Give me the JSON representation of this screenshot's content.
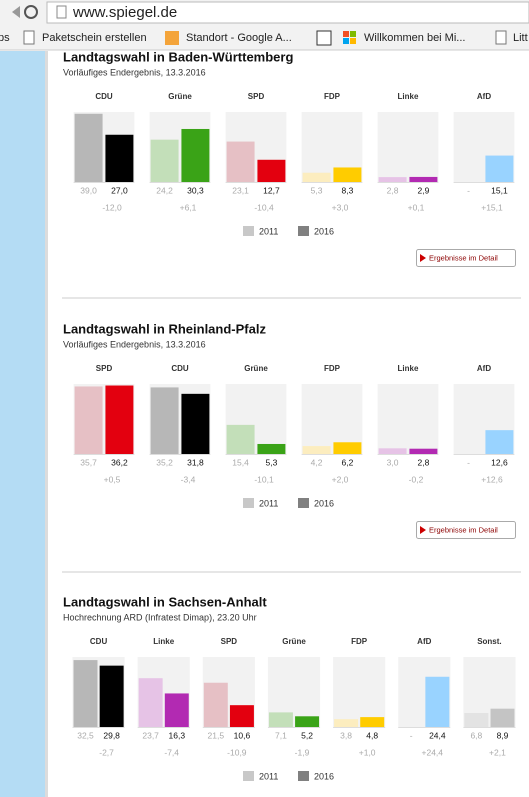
{
  "browser": {
    "url": "www.spiegel.de",
    "bookmarks": [
      "ps",
      "Paketschein erstellen",
      "Standort - Google A...",
      "Willkommen bei Mi...",
      "Litt"
    ]
  },
  "chart_data": [
    {
      "type": "bar",
      "title": "Landtagswahl in Baden-Württemberg",
      "subtitle": "Vorläufiges Endergebnis, 13.3.2016",
      "categories": [
        "CDU",
        "Grüne",
        "SPD",
        "FDP",
        "Linke",
        "AfD"
      ],
      "ylim": [
        0,
        40
      ],
      "series": [
        {
          "name": "2011",
          "color": "#c8c8c8",
          "values": [
            39.0,
            24.2,
            23.1,
            5.3,
            2.8,
            null
          ],
          "value_labels": [
            "39,0",
            "24,2",
            "23,1",
            "5,3",
            "2,8",
            "-"
          ],
          "colors": [
            "#b7b7b7",
            "#c3dfb9",
            "#e6c0c5",
            "#fcedbf",
            "#e6c3e6",
            null
          ]
        },
        {
          "name": "2016",
          "color": "#808080",
          "values": [
            27.0,
            30.3,
            12.7,
            8.3,
            2.9,
            15.1
          ],
          "value_labels": [
            "27,0",
            "30,3",
            "12,7",
            "8,3",
            "2,9",
            "15,1"
          ],
          "colors": [
            "#000000",
            "#3aa317",
            "#e3000f",
            "#ffcc00",
            "#b22ab2",
            "#99d3ff"
          ]
        }
      ],
      "changes": {
        "values": [
          -12.0,
          6.1,
          -10.4,
          3.0,
          0.1,
          15.1
        ],
        "value_labels": [
          "-12,0",
          "+6,1",
          "-10,4",
          "+3,0",
          "+0,1",
          "+15,1"
        ]
      },
      "button": "Ergebnisse im Detail"
    },
    {
      "type": "bar",
      "title": "Landtagswahl in Rheinland-Pfalz",
      "subtitle": "Vorläufiges Endergebnis, 13.3.2016",
      "categories": [
        "SPD",
        "CDU",
        "Grüne",
        "FDP",
        "Linke",
        "AfD"
      ],
      "ylim": [
        0,
        37
      ],
      "series": [
        {
          "name": "2011",
          "color": "#c8c8c8",
          "values": [
            35.7,
            35.2,
            15.4,
            4.2,
            3.0,
            null
          ],
          "value_labels": [
            "35,7",
            "35,2",
            "15,4",
            "4,2",
            "3,0",
            "-"
          ],
          "colors": [
            "#e6c0c5",
            "#b7b7b7",
            "#c3dfb9",
            "#fcedbf",
            "#e6c3e6",
            null
          ]
        },
        {
          "name": "2016",
          "color": "#808080",
          "values": [
            36.2,
            31.8,
            5.3,
            6.2,
            2.8,
            12.6
          ],
          "value_labels": [
            "36,2",
            "31,8",
            "5,3",
            "6,2",
            "2,8",
            "12,6"
          ],
          "colors": [
            "#e3000f",
            "#000000",
            "#3aa317",
            "#ffcc00",
            "#b22ab2",
            "#99d3ff"
          ]
        }
      ],
      "changes": {
        "values": [
          0.5,
          -3.4,
          -10.1,
          2.0,
          -0.2,
          12.6
        ],
        "value_labels": [
          "+0,5",
          "-3,4",
          "-10,1",
          "+2,0",
          "-0,2",
          "+12,6"
        ]
      },
      "button": "Ergebnisse im Detail"
    },
    {
      "type": "bar",
      "title": "Landtagswahl in Sachsen-Anhalt",
      "subtitle": "Hochrechnung ARD (Infratest Dimap), 23.20 Uhr",
      "categories": [
        "CDU",
        "Linke",
        "SPD",
        "Grüne",
        "FDP",
        "AfD",
        "Sonst."
      ],
      "ylim": [
        0,
        34
      ],
      "series": [
        {
          "name": "2011",
          "color": "#c8c8c8",
          "values": [
            32.5,
            23.7,
            21.5,
            7.1,
            3.8,
            null,
            6.8
          ],
          "value_labels": [
            "32,5",
            "23,7",
            "21,5",
            "7,1",
            "3,8",
            "-",
            "6,8"
          ],
          "colors": [
            "#b7b7b7",
            "#e6c3e6",
            "#e6c0c5",
            "#c3dfb9",
            "#fcedbf",
            null,
            "#e3e3e3"
          ]
        },
        {
          "name": "2016",
          "color": "#808080",
          "values": [
            29.8,
            16.3,
            10.6,
            5.2,
            4.8,
            24.4,
            8.9
          ],
          "value_labels": [
            "29,8",
            "16,3",
            "10,6",
            "5,2",
            "4,8",
            "24,4",
            "8,9"
          ],
          "colors": [
            "#000000",
            "#b22ab2",
            "#e3000f",
            "#3aa317",
            "#ffcc00",
            "#99d3ff",
            "#c4c4c4"
          ]
        }
      ],
      "changes": {
        "values": [
          -2.7,
          -7.4,
          -10.9,
          -1.9,
          1.0,
          24.4,
          2.1
        ],
        "value_labels": [
          "-2,7",
          "-7,4",
          "-10,9",
          "-1,9",
          "+1,0",
          "+24,4",
          "+2,1"
        ]
      }
    }
  ]
}
